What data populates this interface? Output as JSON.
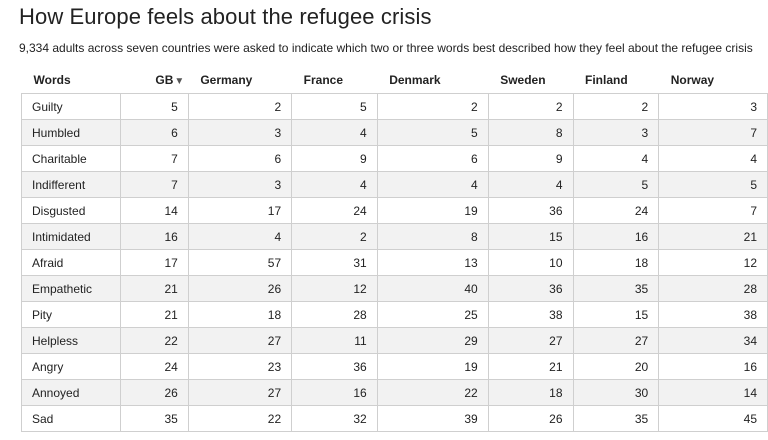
{
  "title": "How Europe feels about the refugee crisis",
  "subtitle": "9,334 adults across seven countries were asked to indicate which two or three words best described how they feel about the refugee crisis",
  "sort_indicator": "▼",
  "chart_data": {
    "type": "table",
    "columns": [
      "Words",
      "GB",
      "Germany",
      "France",
      "Denmark",
      "Sweden",
      "Finland",
      "Norway"
    ],
    "sorted_by": "GB",
    "rows": [
      [
        "Guilty",
        5,
        2,
        5,
        2,
        2,
        2,
        3
      ],
      [
        "Humbled",
        6,
        3,
        4,
        5,
        8,
        3,
        7
      ],
      [
        "Charitable",
        7,
        6,
        9,
        6,
        9,
        4,
        4
      ],
      [
        "Indifferent",
        7,
        3,
        4,
        4,
        4,
        5,
        5
      ],
      [
        "Disgusted",
        14,
        17,
        24,
        19,
        36,
        24,
        7
      ],
      [
        "Intimidated",
        16,
        4,
        2,
        8,
        15,
        16,
        21
      ],
      [
        "Afraid",
        17,
        57,
        31,
        13,
        10,
        18,
        12
      ],
      [
        "Empathetic",
        21,
        26,
        12,
        40,
        36,
        35,
        28
      ],
      [
        "Pity",
        21,
        18,
        28,
        25,
        38,
        15,
        38
      ],
      [
        "Helpless",
        22,
        27,
        11,
        29,
        27,
        27,
        34
      ],
      [
        "Angry",
        24,
        23,
        36,
        19,
        21,
        20,
        16
      ],
      [
        "Annoyed",
        26,
        27,
        16,
        22,
        18,
        30,
        14
      ],
      [
        "Sad",
        35,
        22,
        32,
        39,
        26,
        35,
        45
      ]
    ]
  }
}
